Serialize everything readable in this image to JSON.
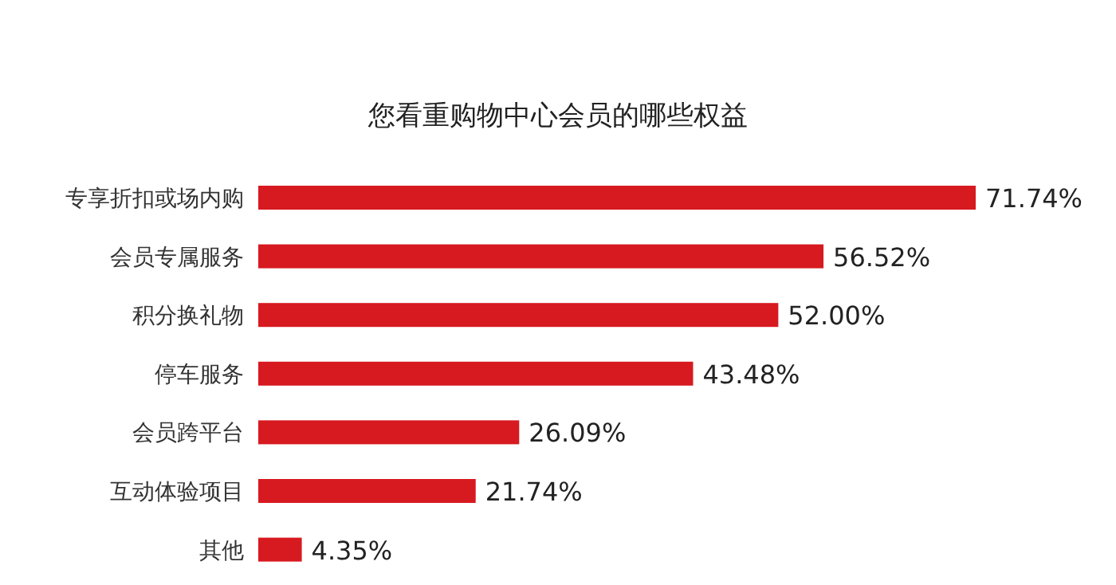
{
  "chart_data": {
    "type": "bar",
    "orientation": "horizontal",
    "title": "您看重购物中心会员的哪些权益",
    "categories": [
      "专享折扣或场内购",
      "会员专属服务",
      "积分换礼物",
      "停车服务",
      "会员跨平台",
      "互动体验项目",
      "其他"
    ],
    "values": [
      71.74,
      56.52,
      52.0,
      43.48,
      26.09,
      21.74,
      4.35
    ],
    "value_labels": [
      "71.74%",
      "56.52%",
      "52.00%",
      "43.48%",
      "26.09%",
      "21.74%",
      "4.35%"
    ],
    "color": "#d71920"
  }
}
